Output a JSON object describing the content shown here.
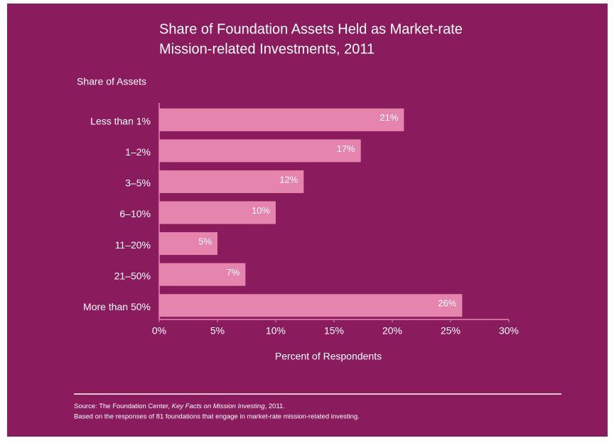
{
  "chart_data": {
    "type": "hbar",
    "title": [
      "Share of Foundation Assets Held as Market-rate",
      "Mission-related Investments, 2011"
    ],
    "y_label": "Share of Assets",
    "x_label": "Percent of Respondents",
    "categories": [
      "Less than 1%",
      "1–2%",
      "3–5%",
      "6–10%",
      "11–20%",
      "21–50%",
      "More than 50%"
    ],
    "values": [
      21,
      17.3,
      12.4,
      10,
      5,
      7.4,
      26
    ],
    "value_labels": [
      "21%",
      "17%",
      "12%",
      "10%",
      "5%",
      "7%",
      "26%"
    ],
    "color": "#e585ad",
    "xlim": [
      0,
      30
    ],
    "xticks": [
      {
        "value": 0,
        "label": "0%"
      },
      {
        "value": 5,
        "label": "5%"
      },
      {
        "value": 10,
        "label": "10%"
      },
      {
        "value": 15,
        "label": "15%"
      },
      {
        "value": 20,
        "label": "20%"
      },
      {
        "value": 25,
        "label": "25%"
      },
      {
        "value": 30,
        "label": "30%"
      }
    ],
    "source": {
      "prefix": "Source: The Foundation Center, ",
      "publication": "Key Facts on Mission Investing",
      "suffix": ", 2011.",
      "note": "Based on the responses of 81 foundations that engage in market-rate mission-related investing."
    }
  }
}
